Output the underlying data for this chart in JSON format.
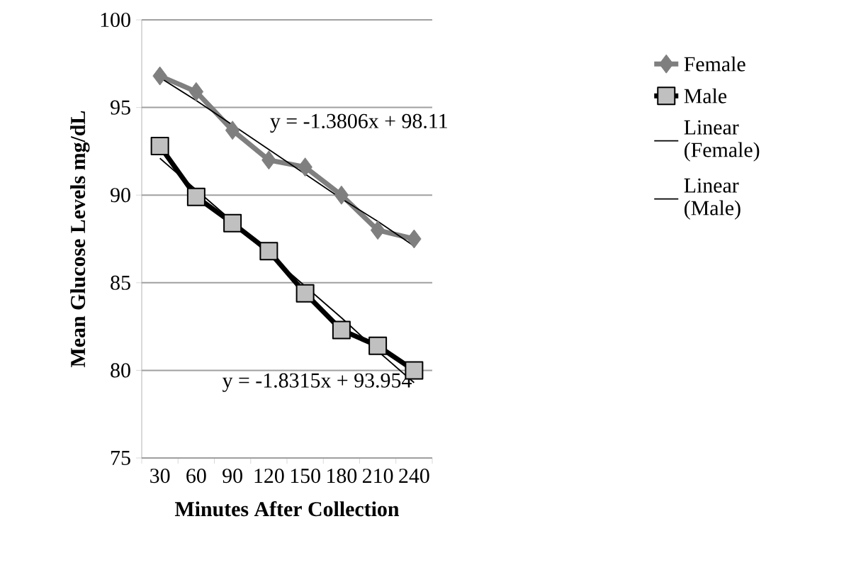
{
  "chart_data": {
    "type": "line",
    "xlabel": "Minutes After Collection",
    "ylabel": "Mean Glucose Levels mg/dL",
    "categories": [
      "30",
      "60",
      "90",
      "120",
      "150",
      "180",
      "210",
      "240"
    ],
    "series": [
      {
        "name": "Female",
        "color": "#7f7f7f",
        "marker": "diamond",
        "values": [
          96.8,
          95.9,
          93.7,
          92.0,
          91.6,
          90.0,
          88.0,
          87.5
        ]
      },
      {
        "name": "Male",
        "color": "#000000",
        "marker": "square",
        "values": [
          92.8,
          89.9,
          88.4,
          86.8,
          84.4,
          82.3,
          81.4,
          80.0
        ]
      },
      {
        "name": "Linear (Female)",
        "color": "#000000",
        "marker": "none",
        "values": [
          96.7,
          95.4,
          94.0,
          92.6,
          91.2,
          89.8,
          88.5,
          87.1
        ]
      },
      {
        "name": "Linear (Male)",
        "color": "#000000",
        "marker": "none",
        "values": [
          92.1,
          90.3,
          88.5,
          86.6,
          84.8,
          83.0,
          81.1,
          79.3
        ]
      }
    ],
    "annotations": [
      "y = -1.3806x + 98.11",
      "y = -1.8315x + 93.954"
    ],
    "ylim": [
      75,
      100
    ],
    "yticks": [
      75,
      80,
      85,
      90,
      95,
      100
    ],
    "grid": "y",
    "legend": "right"
  }
}
